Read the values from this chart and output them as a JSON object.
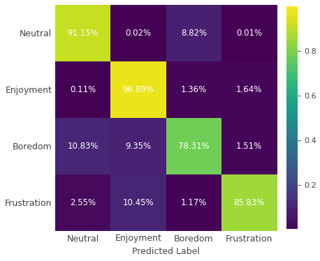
{
  "matrix": [
    [
      0.9115,
      0.0002,
      0.0882,
      0.0001
    ],
    [
      0.0011,
      0.9689,
      0.0136,
      0.0164
    ],
    [
      0.1083,
      0.0935,
      0.7831,
      0.0151
    ],
    [
      0.0255,
      0.1045,
      0.0117,
      0.8583
    ]
  ],
  "labels_text": [
    [
      "91.15%",
      "0.02%",
      "8.82%",
      "0.01%"
    ],
    [
      "0.11%",
      "96.89%",
      "1.36%",
      "1.64%"
    ],
    [
      "10.83%",
      "9.35%",
      "78.31%",
      "1.51%"
    ],
    [
      "2.55%",
      "10.45%",
      "1.17%",
      "85.83%"
    ]
  ],
  "row_labels": [
    "Neutral",
    "Enjoyment",
    "Boredom",
    "Frustration"
  ],
  "col_labels": [
    "Neutral",
    "Enjoyment",
    "Boredom",
    "Frustration"
  ],
  "xlabel": "Predicted Label",
  "colormap": "viridis",
  "text_color_white": "white",
  "text_color_dark": "#444444",
  "tick_label_color": "#444444",
  "xlabel_color": "#444444",
  "cbar_tick_color": "#444444",
  "figsize": [
    4.58,
    3.74
  ],
  "dpi": 100,
  "cbar_ticks": [
    0.2,
    0.4,
    0.6,
    0.8
  ]
}
